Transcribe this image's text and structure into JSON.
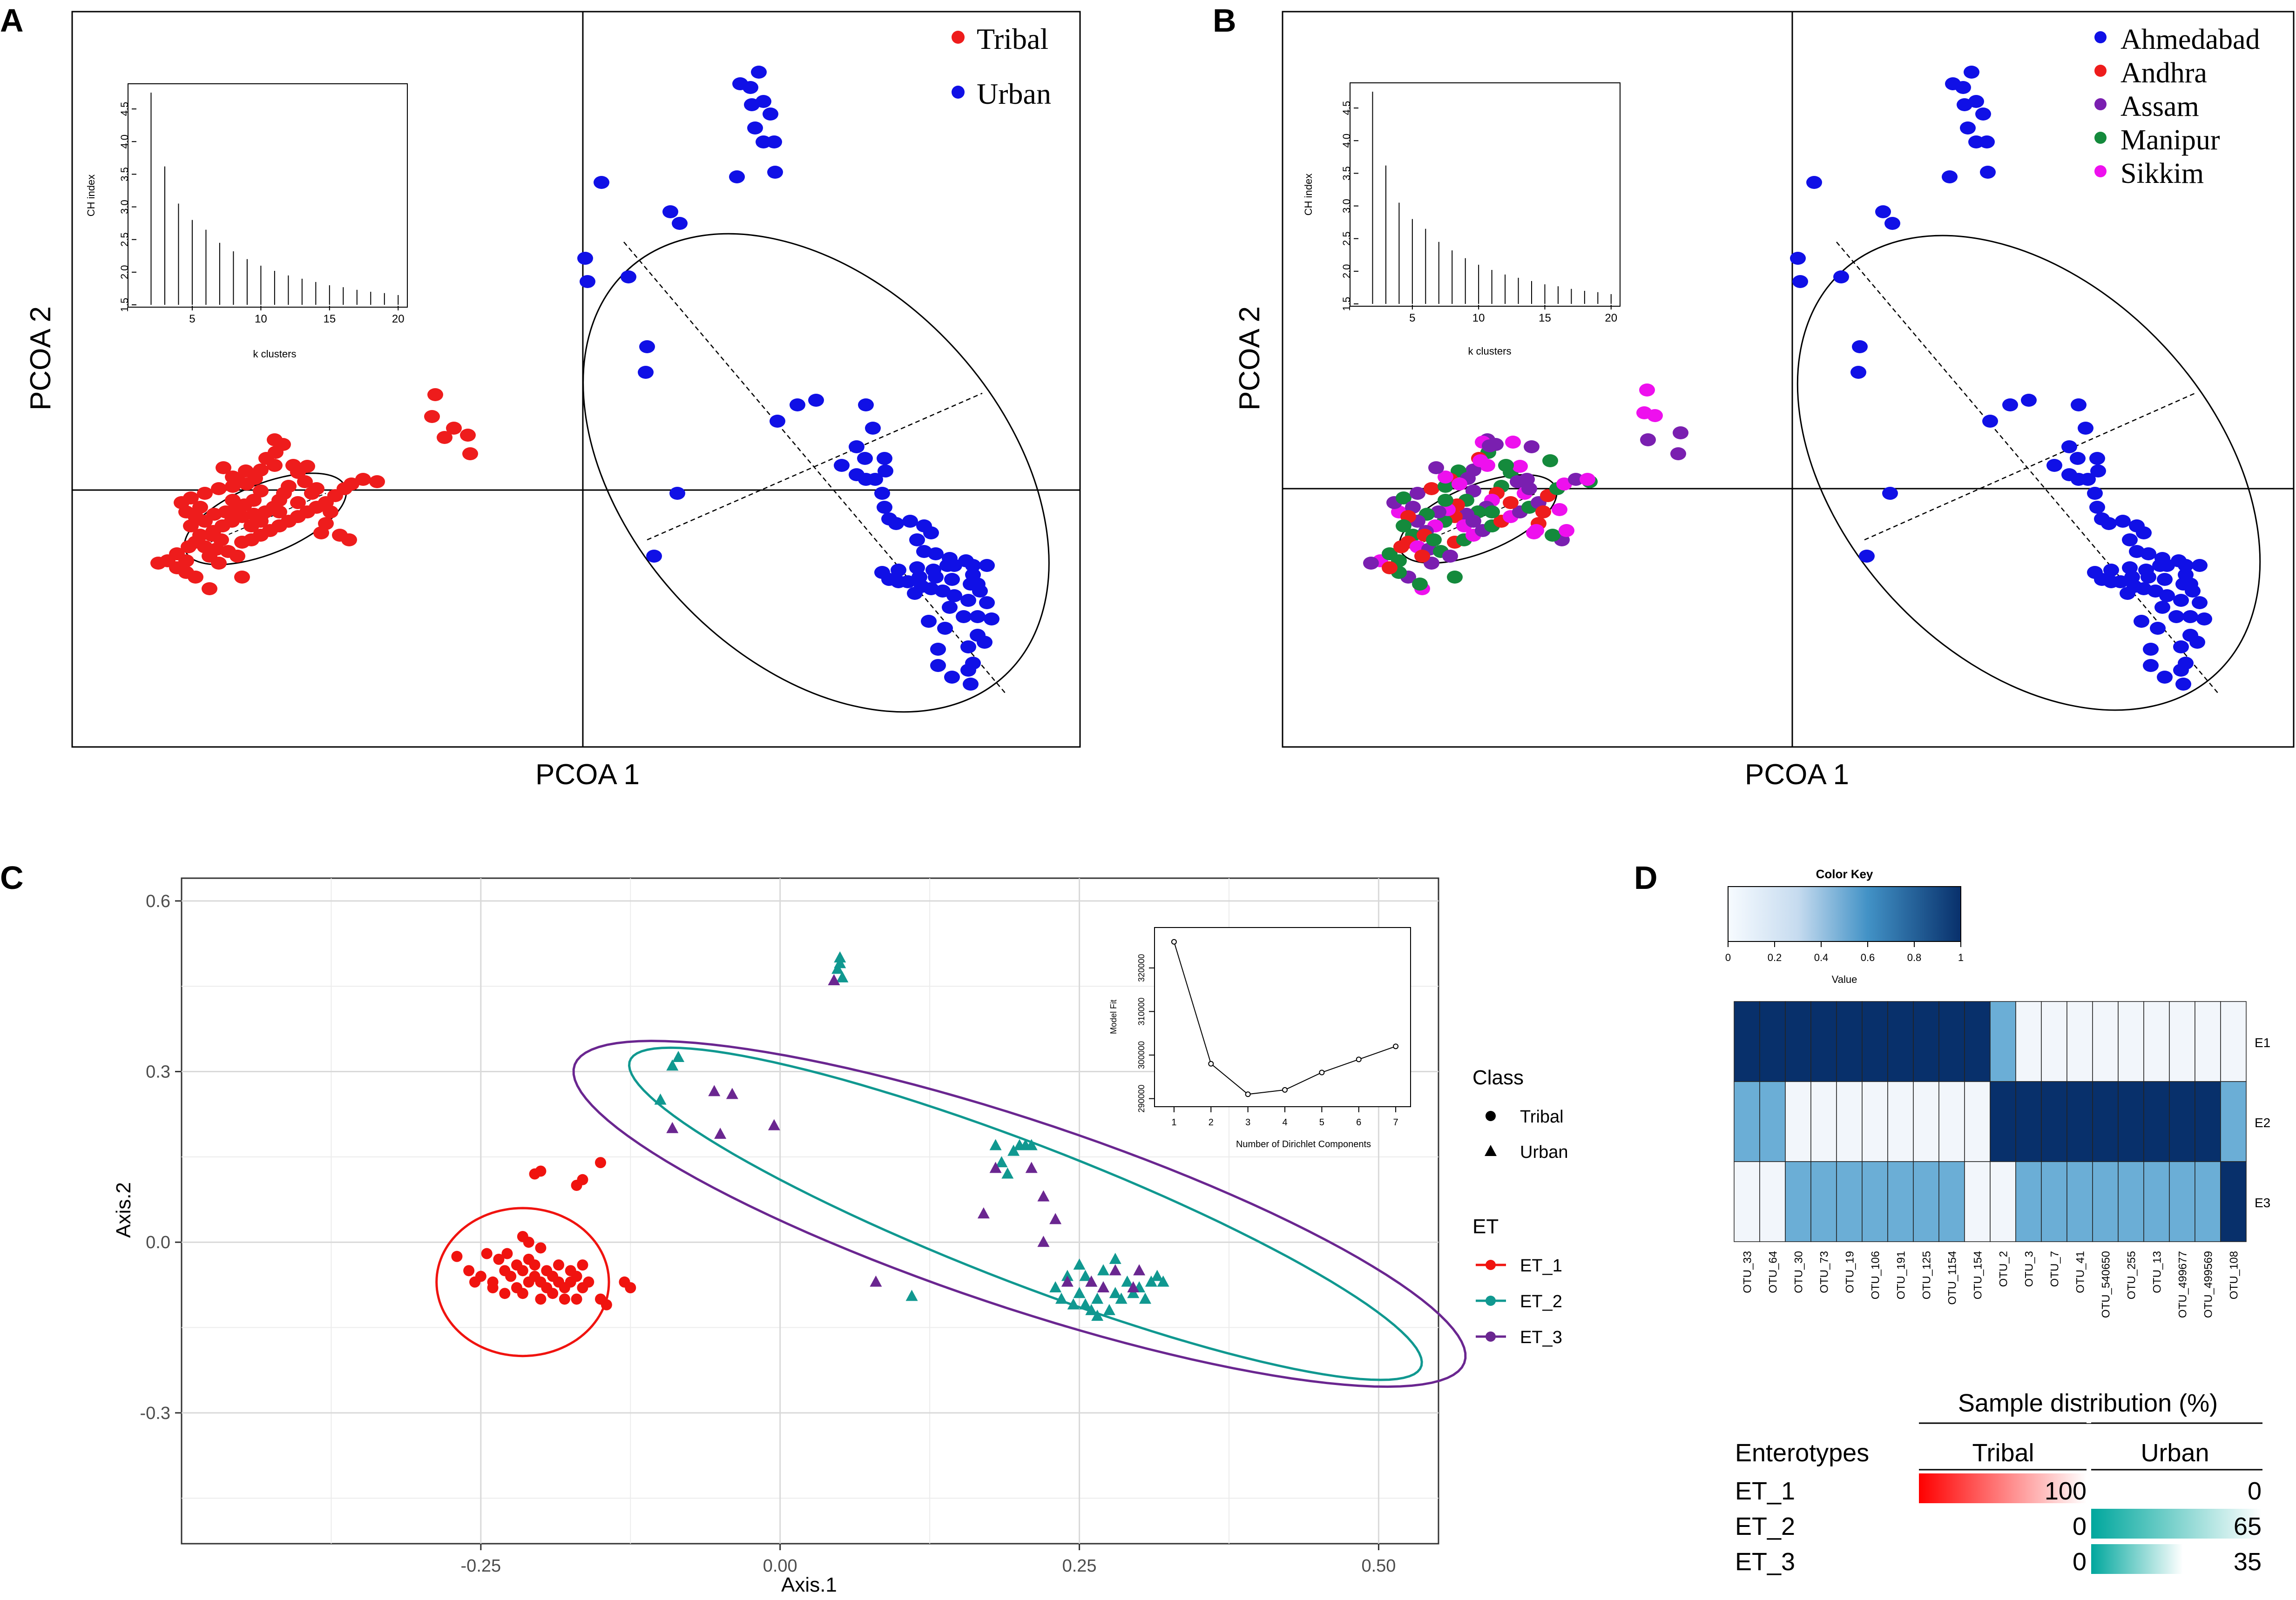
{
  "chart_data": [
    {
      "panel": "A",
      "type": "scatter",
      "xlabel": "PCOA 1",
      "ylabel": "PCOA 2",
      "legend": [
        {
          "label": "Tribal",
          "color": "#ee1c1c"
        },
        {
          "label": "Urban",
          "color": "#1010e6"
        }
      ],
      "inset": {
        "type": "bar",
        "xlabel": "k clusters",
        "ylabel": "CH index",
        "xticks": [
          5,
          10,
          15,
          20
        ],
        "yticks": [
          "1.5",
          "2.0",
          "2.5",
          "3.0",
          "3.5",
          "4.0",
          "4.5"
        ],
        "x": [
          2,
          3,
          4,
          5,
          6,
          7,
          8,
          9,
          10,
          11,
          12,
          13,
          14,
          15,
          16,
          17,
          18,
          19,
          20
        ],
        "values": [
          4.75,
          3.62,
          3.05,
          2.8,
          2.65,
          2.45,
          2.32,
          2.2,
          2.1,
          2.02,
          1.95,
          1.9,
          1.85,
          1.8,
          1.77,
          1.73,
          1.7,
          1.68,
          1.65
        ]
      }
    },
    {
      "panel": "B",
      "type": "scatter",
      "xlabel": "PCOA 1",
      "ylabel": "PCOA 2",
      "legend": [
        {
          "label": "Ahmedabad",
          "color": "#1010e6"
        },
        {
          "label": "Andhra",
          "color": "#ee1c1c"
        },
        {
          "label": "Assam",
          "color": "#7a1fb0"
        },
        {
          "label": "Manipur",
          "color": "#148a3c"
        },
        {
          "label": "Sikkim",
          "color": "#ee10ee"
        }
      ],
      "inset": {
        "type": "bar",
        "xlabel": "k clusters",
        "ylabel": "CH index",
        "xticks": [
          5,
          10,
          15,
          20
        ],
        "yticks": [
          "1.5",
          "2.0",
          "2.5",
          "3.0",
          "3.5",
          "4.0",
          "4.5"
        ],
        "x": [
          2,
          3,
          4,
          5,
          6,
          7,
          8,
          9,
          10,
          11,
          12,
          13,
          14,
          15,
          16,
          17,
          18,
          19,
          20
        ],
        "values": [
          4.75,
          3.62,
          3.05,
          2.8,
          2.65,
          2.45,
          2.32,
          2.2,
          2.1,
          2.02,
          1.95,
          1.9,
          1.85,
          1.8,
          1.77,
          1.73,
          1.7,
          1.68,
          1.65
        ]
      }
    },
    {
      "panel": "C",
      "type": "scatter",
      "xlabel": "Axis.1",
      "ylabel": "Axis.2",
      "xlim": [
        -0.5,
        0.55
      ],
      "ylim": [
        -0.53,
        0.64
      ],
      "xticks": [
        "-0.25",
        "0.00",
        "0.25",
        "0.50"
      ],
      "yticks": [
        "0.6",
        "0.3",
        "0.0",
        "-0.3"
      ],
      "legend_class_title": "Class",
      "legend_class": [
        {
          "label": "Tribal",
          "shape": "circle"
        },
        {
          "label": "Urban",
          "shape": "triangle"
        }
      ],
      "legend_et_title": "ET",
      "legend_et": [
        {
          "label": "ET_1",
          "color": "#f0130f"
        },
        {
          "label": "ET_2",
          "color": "#109890"
        },
        {
          "label": "ET_3",
          "color": "#6a2690"
        }
      ],
      "series": [
        {
          "name": "ET_1",
          "shape": "circle",
          "color": "#f0130f",
          "points": [
            [
              -0.27,
              -0.025
            ],
            [
              -0.245,
              -0.02
            ],
            [
              -0.235,
              -0.03
            ],
            [
              -0.228,
              -0.02
            ],
            [
              -0.2,
              -0.01
            ],
            [
              -0.22,
              -0.04
            ],
            [
              -0.21,
              0.0
            ],
            [
              -0.205,
              0.12
            ],
            [
              -0.2,
              0.125
            ],
            [
              -0.17,
              0.1
            ],
            [
              -0.165,
              0.11
            ],
            [
              -0.15,
              0.14
            ],
            [
              -0.23,
              -0.05
            ],
            [
              -0.225,
              -0.06
            ],
            [
              -0.215,
              -0.05
            ],
            [
              -0.21,
              -0.07
            ],
            [
              -0.205,
              -0.06
            ],
            [
              -0.2,
              -0.07
            ],
            [
              -0.195,
              -0.08
            ],
            [
              -0.19,
              -0.06
            ],
            [
              -0.185,
              -0.07
            ],
            [
              -0.18,
              -0.08
            ],
            [
              -0.175,
              -0.07
            ],
            [
              -0.17,
              -0.06
            ],
            [
              -0.165,
              -0.08
            ],
            [
              -0.16,
              -0.07
            ],
            [
              -0.24,
              -0.07
            ],
            [
              -0.25,
              -0.06
            ],
            [
              -0.26,
              -0.05
            ],
            [
              -0.255,
              -0.07
            ],
            [
              -0.215,
              -0.09
            ],
            [
              -0.2,
              -0.1
            ],
            [
              -0.19,
              -0.09
            ],
            [
              -0.18,
              -0.1
            ],
            [
              -0.17,
              -0.1
            ],
            [
              -0.15,
              -0.1
            ],
            [
              -0.145,
              -0.11
            ],
            [
              -0.13,
              -0.07
            ],
            [
              -0.125,
              -0.08
            ],
            [
              -0.22,
              -0.08
            ],
            [
              -0.23,
              -0.09
            ],
            [
              -0.24,
              -0.08
            ],
            [
              -0.205,
              -0.04
            ],
            [
              -0.195,
              -0.05
            ],
            [
              -0.185,
              -0.04
            ],
            [
              -0.175,
              -0.05
            ],
            [
              -0.165,
              -0.04
            ],
            [
              -0.21,
              -0.03
            ],
            [
              -0.215,
              0.01
            ]
          ]
        },
        {
          "name": "ET_2",
          "shape": "triangle",
          "color": "#109890",
          "points": [
            [
              -0.1,
              0.25
            ],
            [
              -0.09,
              0.31
            ],
            [
              -0.085,
              0.325
            ],
            [
              0.048,
              0.48
            ],
            [
              0.05,
              0.49
            ],
            [
              0.05,
              0.5
            ],
            [
              0.052,
              0.465
            ],
            [
              0.11,
              -0.095
            ],
            [
              0.18,
              0.17
            ],
            [
              0.185,
              0.14
            ],
            [
              0.19,
              0.12
            ],
            [
              0.2,
              0.17
            ],
            [
              0.205,
              0.17
            ],
            [
              0.21,
              0.17
            ],
            [
              0.195,
              0.16
            ],
            [
              0.24,
              -0.06
            ],
            [
              0.25,
              -0.09
            ],
            [
              0.255,
              -0.11
            ],
            [
              0.26,
              -0.07
            ],
            [
              0.265,
              -0.1
            ],
            [
              0.27,
              -0.08
            ],
            [
              0.275,
              -0.12
            ],
            [
              0.28,
              -0.09
            ],
            [
              0.285,
              -0.1
            ],
            [
              0.29,
              -0.07
            ],
            [
              0.3,
              -0.08
            ],
            [
              0.31,
              -0.07
            ],
            [
              0.315,
              -0.06
            ],
            [
              0.32,
              -0.07
            ],
            [
              0.245,
              -0.11
            ],
            [
              0.26,
              -0.12
            ],
            [
              0.27,
              -0.05
            ],
            [
              0.28,
              -0.03
            ],
            [
              0.25,
              -0.04
            ],
            [
              0.23,
              -0.08
            ],
            [
              0.235,
              -0.1
            ],
            [
              0.255,
              -0.06
            ],
            [
              0.295,
              -0.09
            ],
            [
              0.305,
              -0.1
            ],
            [
              0.265,
              -0.13
            ]
          ]
        },
        {
          "name": "ET_3",
          "shape": "triangle",
          "color": "#6a2690",
          "points": [
            [
              -0.09,
              0.2
            ],
            [
              -0.055,
              0.265
            ],
            [
              -0.05,
              0.19
            ],
            [
              -0.04,
              0.26
            ],
            [
              -0.005,
              0.205
            ],
            [
              0.045,
              0.46
            ],
            [
              0.08,
              -0.07
            ],
            [
              0.17,
              0.05
            ],
            [
              0.18,
              0.13
            ],
            [
              0.21,
              0.13
            ],
            [
              0.22,
              0.08
            ],
            [
              0.23,
              0.04
            ],
            [
              0.22,
              0.0
            ],
            [
              0.24,
              -0.07
            ],
            [
              0.28,
              -0.05
            ],
            [
              0.3,
              -0.05
            ],
            [
              0.26,
              -0.07
            ],
            [
              0.295,
              -0.08
            ],
            [
              0.27,
              -0.08
            ]
          ]
        }
      ],
      "inset": {
        "type": "line",
        "xlabel": "Number of Dirichlet Components",
        "ylabel": "Model Fit",
        "xticks": [
          1,
          2,
          3,
          4,
          5,
          6,
          7
        ],
        "yticks": [
          "290000",
          "300000",
          "310000",
          "320000"
        ],
        "x": [
          1,
          2,
          3,
          4,
          5,
          6,
          7
        ],
        "values": [
          326000,
          298000,
          291000,
          292000,
          296000,
          299000,
          302000
        ]
      }
    },
    {
      "panel": "D",
      "type": "heatmap",
      "color_key_title": "Color Key",
      "color_key_xlabel": "Value",
      "color_key_ticks": [
        "0",
        "0.2",
        "0.4",
        "0.6",
        "0.8",
        "1"
      ],
      "columns": [
        "OTU_33",
        "OTU_64",
        "OTU_30",
        "OTU_73",
        "OTU_19",
        "OTU_106",
        "OTU_191",
        "OTU_125",
        "OTU_1154",
        "OTU_154",
        "OTU_2",
        "OTU_3",
        "OTU_7",
        "OTU_41",
        "OTU_540650",
        "OTU_255",
        "OTU_13",
        "OTU_499677",
        "OTU_499569",
        "OTU_108"
      ],
      "rows": [
        "E1",
        "E2",
        "E3"
      ],
      "values": [
        [
          1,
          1,
          1,
          1,
          1,
          1,
          1,
          1,
          1,
          1,
          0.55,
          0.03,
          0.03,
          0.03,
          0.03,
          0.03,
          0.03,
          0.03,
          0.03,
          0.03
        ],
        [
          0.55,
          0.55,
          0.03,
          0.03,
          0.03,
          0.03,
          0.03,
          0.03,
          0.03,
          0.03,
          1,
          1,
          1,
          1,
          1,
          1,
          1,
          1,
          1,
          0.55
        ],
        [
          0.03,
          0.03,
          0.55,
          0.55,
          0.55,
          0.55,
          0.55,
          0.55,
          0.55,
          0.03,
          0.03,
          0.55,
          0.55,
          0.55,
          0.55,
          0.55,
          0.55,
          0.55,
          0.55,
          1
        ]
      ]
    },
    {
      "panel": "D",
      "type": "table",
      "title": "Sample distribution (%)",
      "row_header": "Enterotypes",
      "column_headers": [
        "Tribal",
        "Urban"
      ],
      "rows": [
        {
          "label": "ET_1",
          "tribal": 100,
          "urban": 0
        },
        {
          "label": "ET_2",
          "tribal": 0,
          "urban": 65
        },
        {
          "label": "ET_3",
          "tribal": 0,
          "urban": 35
        }
      ]
    }
  ],
  "panel_labels": [
    "A",
    "B",
    "C",
    "D"
  ]
}
